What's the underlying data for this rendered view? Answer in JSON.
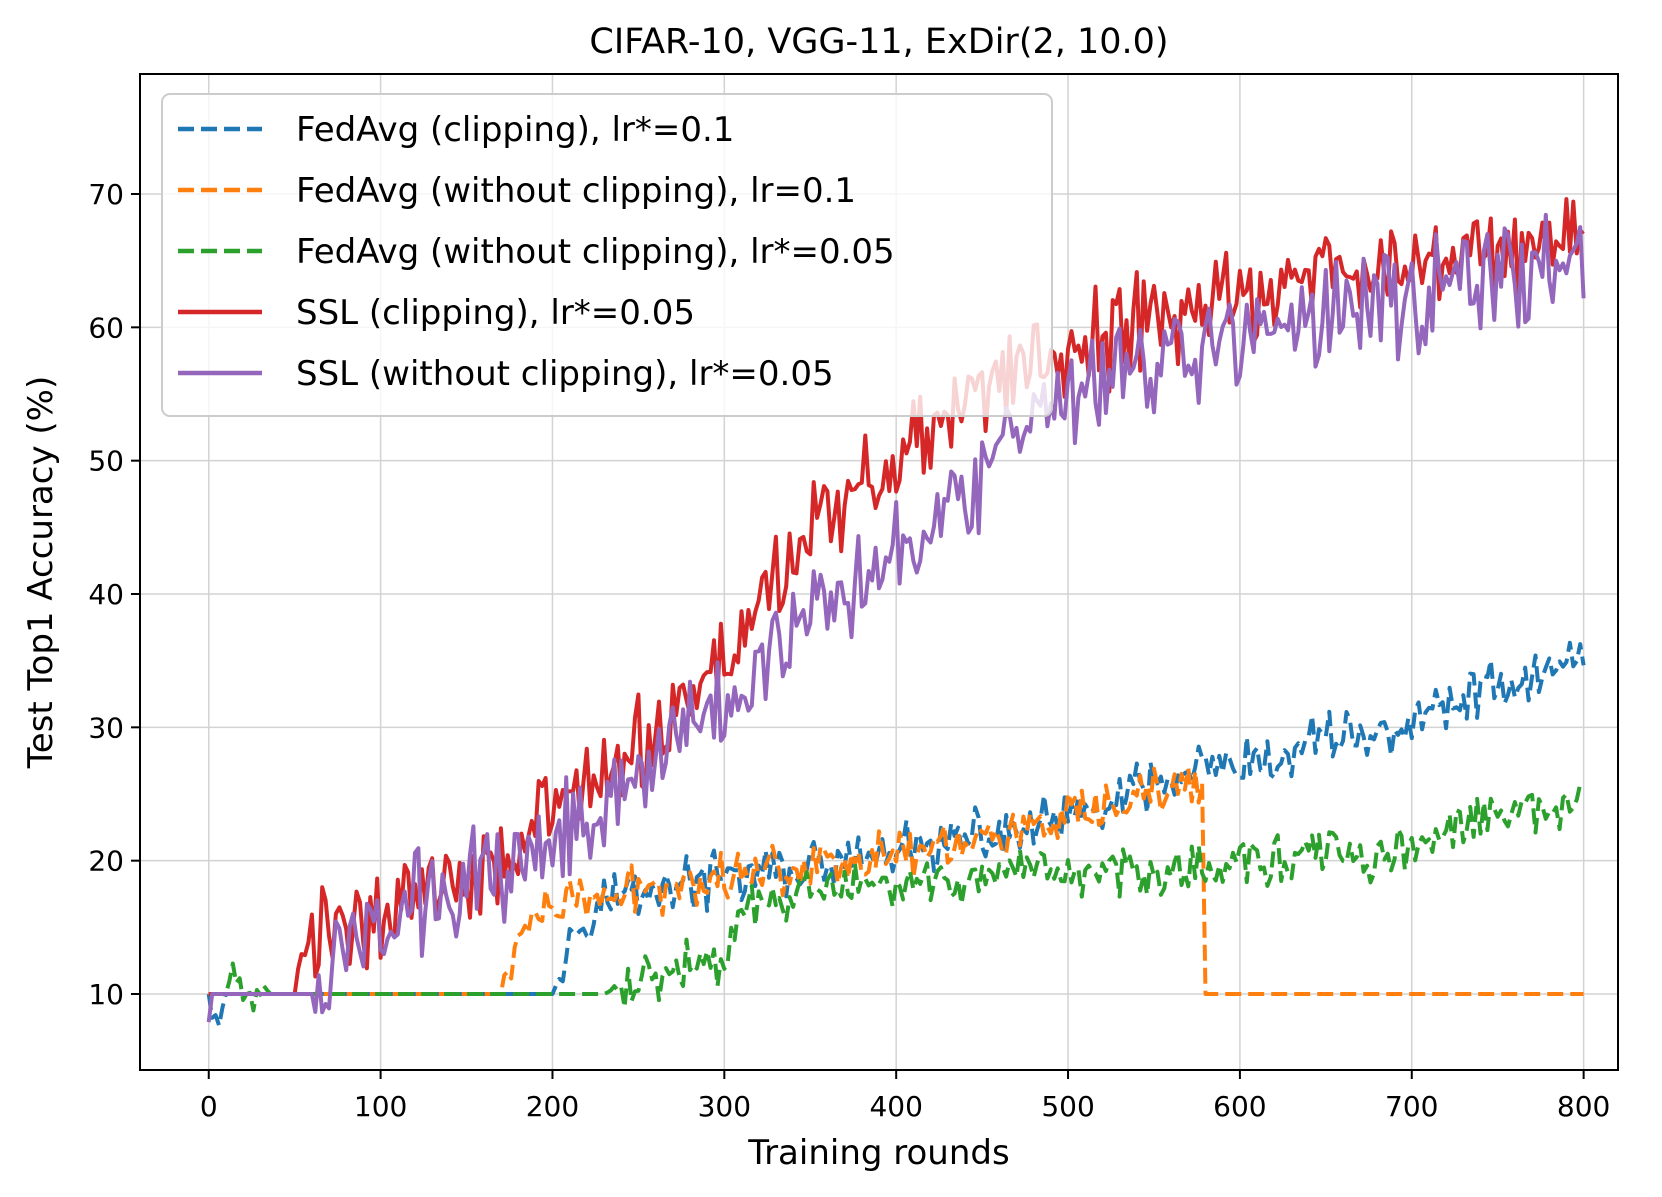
{
  "chart_data": {
    "type": "line",
    "title": "CIFAR-10, VGG-11, ExDir(2, 10.0)",
    "xlabel": "Training rounds",
    "ylabel": "Test Top1 Accuracy (%)",
    "xlim": [
      -40,
      820
    ],
    "ylim": [
      4.3,
      79.0
    ],
    "xticks": [
      0,
      100,
      200,
      300,
      400,
      500,
      600,
      700,
      800
    ],
    "yticks": [
      10,
      20,
      30,
      40,
      50,
      60,
      70
    ],
    "grid": true,
    "legend_position": "upper-left",
    "series": [
      {
        "name": "FedAvg (clipping), lr*=0.1",
        "color": "#1f77b4",
        "dash": "dashed",
        "points": [
          [
            0,
            10
          ],
          [
            5,
            9.6
          ],
          [
            10,
            10
          ],
          [
            30,
            10
          ],
          [
            60,
            10
          ],
          [
            100,
            10
          ],
          [
            150,
            10
          ],
          [
            190,
            10
          ],
          [
            200,
            10
          ],
          [
            205,
            11.5
          ],
          [
            210,
            14
          ],
          [
            215,
            15.5
          ],
          [
            220,
            16.5
          ],
          [
            230,
            17
          ],
          [
            240,
            17.5
          ],
          [
            250,
            17.8
          ],
          [
            260,
            18
          ],
          [
            270,
            18.2
          ],
          [
            280,
            18.5
          ],
          [
            290,
            18.3
          ],
          [
            300,
            18.6
          ],
          [
            320,
            19
          ],
          [
            340,
            19.2
          ],
          [
            360,
            19.5
          ],
          [
            380,
            20
          ],
          [
            400,
            20.5
          ],
          [
            420,
            21
          ],
          [
            440,
            21.5
          ],
          [
            460,
            22
          ],
          [
            480,
            22.5
          ],
          [
            500,
            23
          ],
          [
            520,
            24
          ],
          [
            540,
            25
          ],
          [
            560,
            26
          ],
          [
            580,
            27
          ],
          [
            590,
            26.5
          ],
          [
            600,
            27
          ],
          [
            620,
            27
          ],
          [
            640,
            29
          ],
          [
            660,
            30
          ],
          [
            680,
            29
          ],
          [
            700,
            30.5
          ],
          [
            720,
            31.5
          ],
          [
            740,
            33
          ],
          [
            760,
            33.5
          ],
          [
            780,
            34
          ],
          [
            800,
            36
          ]
        ],
        "noise": 2.5
      },
      {
        "name": "FedAvg (without clipping), lr=0.1",
        "color": "#ff7f0e",
        "dash": "dashed",
        "points": [
          [
            0,
            10
          ],
          [
            10,
            10
          ],
          [
            50,
            10
          ],
          [
            100,
            10
          ],
          [
            150,
            10
          ],
          [
            170,
            10
          ],
          [
            175,
            12
          ],
          [
            180,
            14
          ],
          [
            190,
            15.5
          ],
          [
            200,
            16.5
          ],
          [
            220,
            17
          ],
          [
            240,
            17.5
          ],
          [
            260,
            18
          ],
          [
            280,
            18.3
          ],
          [
            300,
            19
          ],
          [
            320,
            19.3
          ],
          [
            340,
            19.6
          ],
          [
            360,
            20
          ],
          [
            380,
            20.3
          ],
          [
            400,
            20.5
          ],
          [
            420,
            21
          ],
          [
            440,
            21.5
          ],
          [
            460,
            22
          ],
          [
            480,
            22.5
          ],
          [
            500,
            23
          ],
          [
            520,
            23.5
          ],
          [
            540,
            24.5
          ],
          [
            560,
            25.5
          ],
          [
            578,
            26
          ],
          [
            579,
            10
          ],
          [
            800,
            10
          ]
        ],
        "noise": 2.2,
        "noise_until": 578
      },
      {
        "name": "FedAvg (without clipping), lr*=0.05",
        "color": "#2ca02c",
        "dash": "dashed",
        "points": [
          [
            0,
            10
          ],
          [
            10,
            10
          ],
          [
            18,
            12
          ],
          [
            22,
            10
          ],
          [
            28,
            8.5
          ],
          [
            35,
            10
          ],
          [
            100,
            10
          ],
          [
            200,
            10
          ],
          [
            230,
            10
          ],
          [
            250,
            11
          ],
          [
            270,
            12
          ],
          [
            290,
            12.5
          ],
          [
            300,
            12
          ],
          [
            310,
            16
          ],
          [
            330,
            17
          ],
          [
            350,
            17.5
          ],
          [
            370,
            18
          ],
          [
            400,
            18
          ],
          [
            420,
            18.3
          ],
          [
            440,
            18.5
          ],
          [
            460,
            18.7
          ],
          [
            480,
            18.8
          ],
          [
            500,
            19
          ],
          [
            520,
            19
          ],
          [
            540,
            19.2
          ],
          [
            560,
            19.3
          ],
          [
            580,
            19.5
          ],
          [
            600,
            20
          ],
          [
            620,
            20
          ],
          [
            640,
            20.5
          ],
          [
            660,
            20.5
          ],
          [
            680,
            20
          ],
          [
            700,
            21
          ],
          [
            720,
            22
          ],
          [
            740,
            23
          ],
          [
            760,
            23.5
          ],
          [
            780,
            23.5
          ],
          [
            800,
            25
          ]
        ],
        "noise": 2.2
      },
      {
        "name": "SSL (clipping), lr*=0.05",
        "color": "#d62728",
        "dash": "solid",
        "points": [
          [
            0,
            10
          ],
          [
            20,
            10
          ],
          [
            50,
            10
          ],
          [
            55,
            13
          ],
          [
            70,
            15
          ],
          [
            100,
            16
          ],
          [
            120,
            18
          ],
          [
            150,
            19
          ],
          [
            180,
            21
          ],
          [
            200,
            24
          ],
          [
            220,
            25
          ],
          [
            250,
            28
          ],
          [
            270,
            31
          ],
          [
            300,
            35
          ],
          [
            320,
            40
          ],
          [
            340,
            43
          ],
          [
            360,
            46
          ],
          [
            380,
            48
          ],
          [
            400,
            50
          ],
          [
            420,
            52
          ],
          [
            440,
            54
          ],
          [
            460,
            56
          ],
          [
            480,
            57
          ],
          [
            500,
            58
          ],
          [
            520,
            59
          ],
          [
            540,
            60
          ],
          [
            560,
            61
          ],
          [
            580,
            62
          ],
          [
            600,
            62.5
          ],
          [
            620,
            63
          ],
          [
            640,
            63.5
          ],
          [
            660,
            64
          ],
          [
            680,
            64.5
          ],
          [
            700,
            65
          ],
          [
            720,
            65.5
          ],
          [
            740,
            66
          ],
          [
            760,
            66
          ],
          [
            780,
            66.5
          ],
          [
            800,
            67
          ]
        ],
        "noise": 4.5
      },
      {
        "name": "SSL (without clipping), lr*=0.05",
        "color": "#9467bd",
        "dash": "solid",
        "points": [
          [
            0,
            7.5
          ],
          [
            2,
            10
          ],
          [
            20,
            10
          ],
          [
            60,
            10
          ],
          [
            70,
            11
          ],
          [
            80,
            13
          ],
          [
            100,
            15
          ],
          [
            120,
            17
          ],
          [
            150,
            18.5
          ],
          [
            180,
            20
          ],
          [
            200,
            22
          ],
          [
            220,
            24
          ],
          [
            250,
            27
          ],
          [
            270,
            29
          ],
          [
            300,
            31
          ],
          [
            320,
            35
          ],
          [
            340,
            38
          ],
          [
            360,
            40
          ],
          [
            380,
            42
          ],
          [
            400,
            44
          ],
          [
            420,
            46
          ],
          [
            440,
            48
          ],
          [
            460,
            50
          ],
          [
            480,
            52
          ],
          [
            500,
            54
          ],
          [
            520,
            56
          ],
          [
            540,
            57
          ],
          [
            560,
            58
          ],
          [
            580,
            58.5
          ],
          [
            600,
            59
          ],
          [
            620,
            60
          ],
          [
            640,
            60.5
          ],
          [
            660,
            61
          ],
          [
            680,
            62
          ],
          [
            700,
            62.5
          ],
          [
            720,
            63
          ],
          [
            740,
            63.5
          ],
          [
            760,
            64
          ],
          [
            780,
            64.5
          ],
          [
            800,
            64
          ]
        ],
        "noise": 4.8
      }
    ]
  }
}
